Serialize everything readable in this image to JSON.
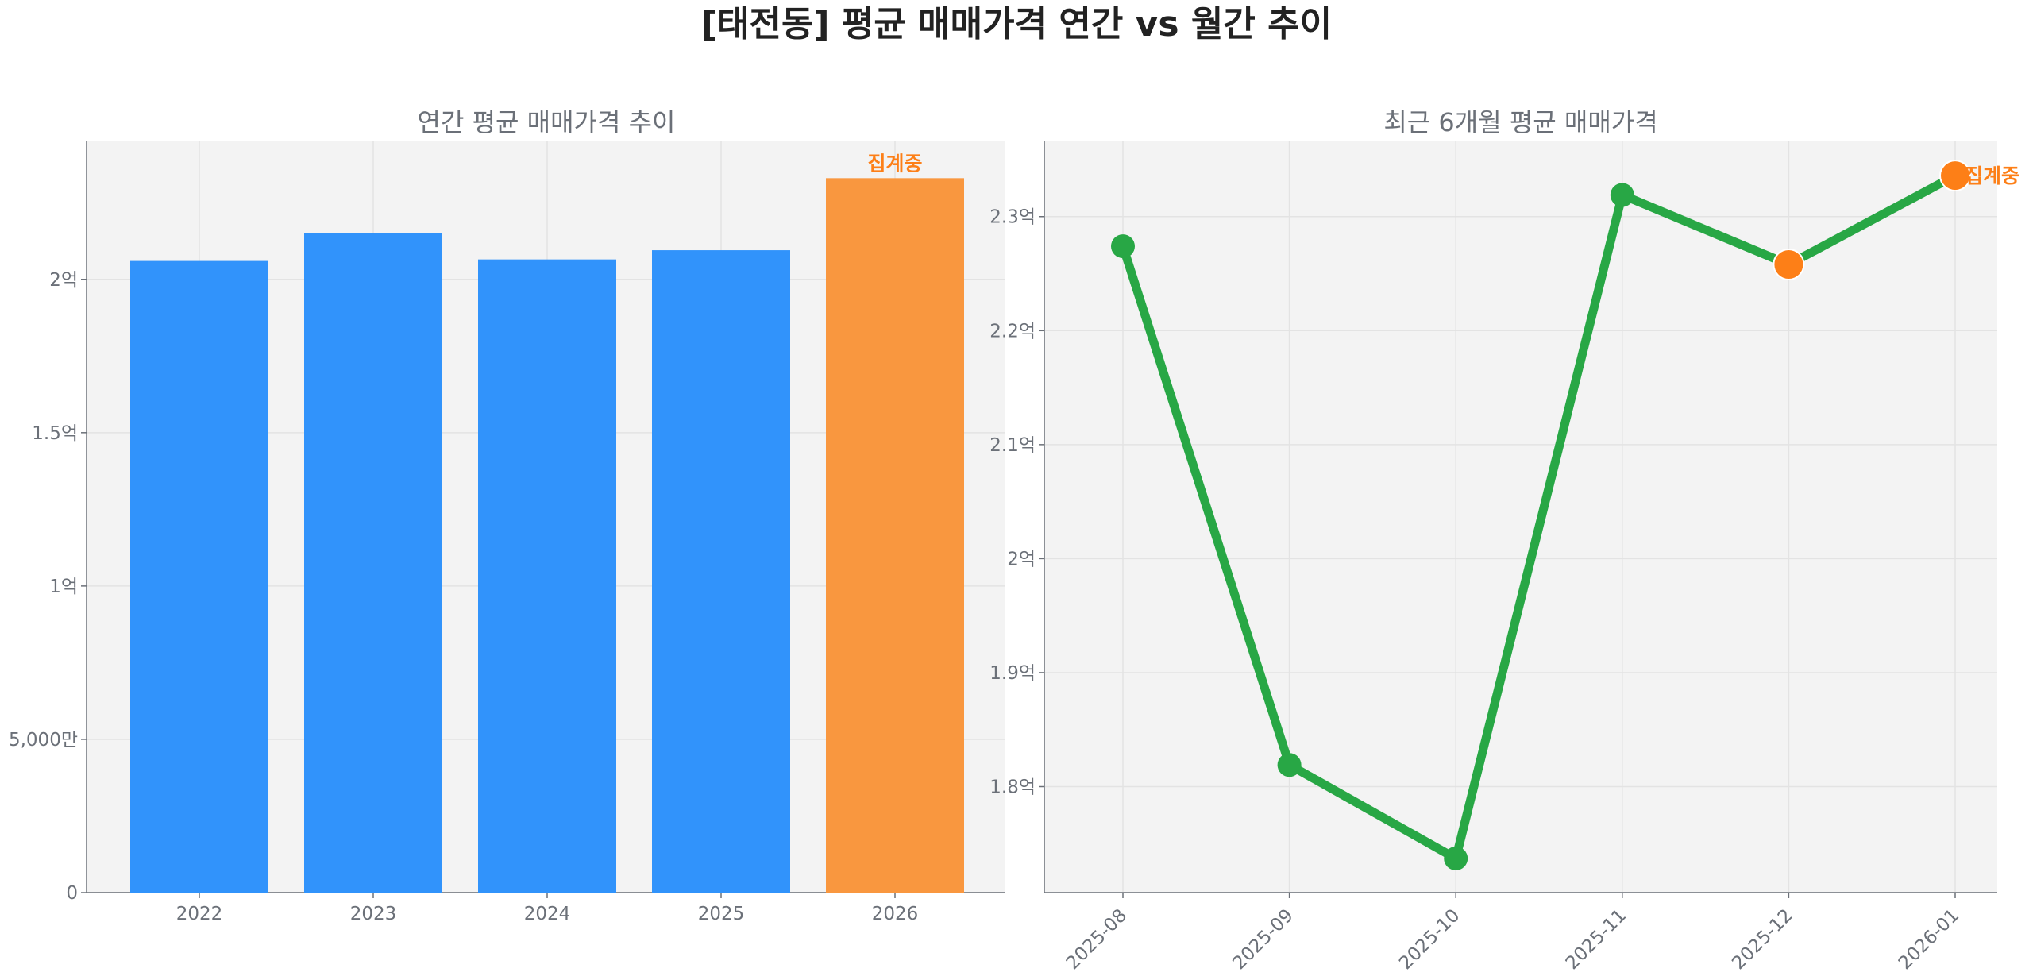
{
  "title": "[태전동] 평균 매매가격 연간 vs 월간 추이",
  "colors": {
    "bar": "#3193fb",
    "bar_partial": "#f9973f",
    "line": "#28a745",
    "partial_marker": "#fd7f17",
    "annotation": "#fd7f17",
    "plot_bg": "#f3f3f3"
  },
  "chart_data": [
    {
      "type": "bar",
      "title": "연간 평균 매매가격 추이",
      "unit": "억",
      "categories": [
        "2022",
        "2023",
        "2024",
        "2025",
        "2026"
      ],
      "values": [
        2.06,
        2.15,
        2.065,
        2.095,
        2.33
      ],
      "partial": [
        false,
        false,
        false,
        false,
        true
      ],
      "annotation": {
        "category": "2026",
        "text": "집계중"
      },
      "ylim": [
        0,
        2.45
      ],
      "yticks": [
        0,
        0.5,
        1,
        1.5,
        2
      ],
      "ytick_labels": [
        "0",
        "5,000만",
        "1억",
        "1.5억",
        "2억"
      ],
      "grid": true
    },
    {
      "type": "line",
      "title": "최근 6개월 평균 매매가격",
      "unit": "억",
      "categories": [
        "2025-08",
        "2025-09",
        "2025-10",
        "2025-11",
        "2025-12",
        "2026-01"
      ],
      "values": [
        2.274,
        1.819,
        1.737,
        2.319,
        2.258,
        2.336
      ],
      "partial": [
        false,
        false,
        false,
        false,
        true,
        true
      ],
      "annotation": {
        "category": "2026-01",
        "text": "집계중"
      },
      "ylim": [
        1.707,
        2.366
      ],
      "yticks": [
        1.8,
        1.9,
        2.0,
        2.1,
        2.2,
        2.3
      ],
      "ytick_labels": [
        "1.8억",
        "1.9억",
        "2억",
        "2.1억",
        "2.2억",
        "2.3억"
      ],
      "grid": true
    }
  ]
}
